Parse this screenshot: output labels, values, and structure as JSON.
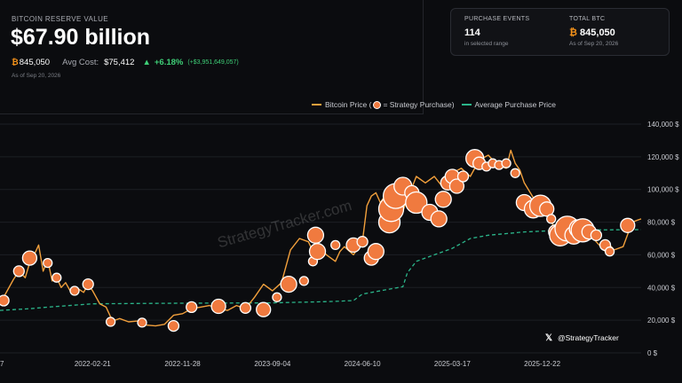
{
  "header": {
    "reserve_label": "BITCOIN RESERVE VALUE",
    "reserve_value": "$67.90 billion",
    "btc_symbol": "₿",
    "btc_amount": "845,050",
    "avg_cost_label": "Avg Cost:",
    "avg_cost_value": "$75,412",
    "change_arrow": "▲",
    "change_pct": "+6.18%",
    "change_abs": "(+$3,951,649,057)",
    "as_of": "As of Sep 20, 2026"
  },
  "summary_card": {
    "events_label": "PURCHASE EVENTS",
    "events_value": "114",
    "events_sub": "in selected range",
    "total_label": "TOTAL BTC",
    "total_symbol": "₿",
    "total_value": "845,050",
    "total_sub": "As of Sep 20, 2026"
  },
  "legend": {
    "price": "Bitcoin Price (",
    "purchase": "= Strategy Purchase)",
    "average": "Average Purchase Price"
  },
  "watermark": "StrategyTracker.com",
  "social": {
    "icon": "x-logo-icon",
    "handle": "@StrategyTracker"
  },
  "colors": {
    "price": "#f2a03c",
    "bubble": "#f07a3f",
    "average": "#2bb58a",
    "bitcoin": "#f7931a"
  },
  "chart_data": {
    "type": "line",
    "y_ticks": [
      "0 $",
      "20,000 $",
      "40,000 $",
      "60,000 $",
      "80,000 $",
      "100,000 $",
      "120,000 $",
      "140,000 $"
    ],
    "ylim": [
      0,
      140000
    ],
    "x_ticks": [
      "7",
      "2022-02-21",
      "2022-11-28",
      "2023-09-04",
      "2024-06-10",
      "2025-03-17",
      "2025-12-22"
    ],
    "x_tick_pos": [
      0,
      1,
      2,
      3,
      4,
      5,
      6
    ],
    "xlim": [
      -0.03,
      7.1
    ],
    "series": [
      {
        "name": "Bitcoin Price",
        "x": [
          -0.03,
          0.05,
          0.12,
          0.18,
          0.25,
          0.3,
          0.35,
          0.4,
          0.45,
          0.5,
          0.55,
          0.6,
          0.65,
          0.7,
          0.75,
          0.82,
          0.9,
          0.95,
          1.0,
          1.08,
          1.15,
          1.2,
          1.25,
          1.3,
          1.4,
          1.5,
          1.6,
          1.7,
          1.8,
          1.9,
          2.0,
          2.1,
          2.2,
          2.3,
          2.4,
          2.5,
          2.6,
          2.7,
          2.8,
          2.9,
          3.0,
          3.1,
          3.2,
          3.3,
          3.4,
          3.45,
          3.5,
          3.6,
          3.7,
          3.75,
          3.8,
          3.9,
          4.0,
          4.05,
          4.1,
          4.15,
          4.2,
          4.3,
          4.4,
          4.45,
          4.5,
          4.55,
          4.6,
          4.7,
          4.8,
          4.9,
          5.0,
          5.1,
          5.2,
          5.3,
          5.4,
          5.5,
          5.6,
          5.65,
          5.7,
          5.75,
          5.8,
          5.9,
          6.0,
          6.05,
          6.1,
          6.15,
          6.2,
          6.25,
          6.3,
          6.4,
          6.5,
          6.6,
          6.7,
          6.75,
          6.8,
          6.9,
          7.0,
          7.05,
          7.1
        ],
        "y": [
          30000,
          38000,
          45000,
          50000,
          46000,
          55000,
          60000,
          66000,
          50000,
          57000,
          44000,
          46000,
          40000,
          43000,
          38000,
          40000,
          37000,
          42000,
          38000,
          30000,
          28000,
          22000,
          20000,
          21000,
          19000,
          19500,
          17000,
          16500,
          17500,
          23000,
          24000,
          27000,
          28000,
          29000,
          27000,
          26000,
          29000,
          27000,
          34000,
          42000,
          38000,
          43000,
          63000,
          70000,
          68000,
          62000,
          66000,
          60000,
          56000,
          62000,
          65000,
          60000,
          68000,
          90000,
          96000,
          98000,
          92000,
          100000,
          96000,
          87000,
          94000,
          101000,
          108000,
          104000,
          108000,
          101000,
          110000,
          113000,
          108000,
          118000,
          121000,
          115000,
          113000,
          124000,
          116000,
          112000,
          104000,
          95000,
          90000,
          85000,
          80000,
          76000,
          71000,
          82000,
          69000,
          75000,
          77000,
          68000,
          62000,
          66000,
          63000,
          65000,
          80000,
          81000,
          82000
        ]
      },
      {
        "name": "Average Purchase Price",
        "x": [
          -0.03,
          0.3,
          0.5,
          1.0,
          1.5,
          2.0,
          2.5,
          3.0,
          3.3,
          3.5,
          3.7,
          3.9,
          4.0,
          4.2,
          4.3,
          4.4,
          4.45,
          4.5,
          4.6,
          4.8,
          5.0,
          5.2,
          5.4,
          5.6,
          5.8,
          6.0,
          6.2,
          6.5,
          6.8,
          7.1
        ],
        "y": [
          26000,
          27000,
          28000,
          30000,
          30200,
          30400,
          30500,
          30600,
          31000,
          31200,
          31500,
          32000,
          36000,
          38000,
          39000,
          40000,
          40500,
          49000,
          56000,
          60000,
          64000,
          70000,
          72000,
          73000,
          74000,
          74500,
          75000,
          75200,
          75300,
          75412
        ]
      }
    ],
    "purchases": [
      {
        "x": 0.01,
        "y": 32000,
        "r": 6
      },
      {
        "x": 0.18,
        "y": 50000,
        "r": 6
      },
      {
        "x": 0.3,
        "y": 58000,
        "r": 8
      },
      {
        "x": 0.5,
        "y": 55000,
        "r": 5
      },
      {
        "x": 0.6,
        "y": 46000,
        "r": 5
      },
      {
        "x": 0.8,
        "y": 38000,
        "r": 5
      },
      {
        "x": 0.95,
        "y": 42000,
        "r": 6
      },
      {
        "x": 1.2,
        "y": 19000,
        "r": 5
      },
      {
        "x": 1.55,
        "y": 18500,
        "r": 5
      },
      {
        "x": 1.9,
        "y": 16500,
        "r": 6
      },
      {
        "x": 2.1,
        "y": 28000,
        "r": 6
      },
      {
        "x": 2.4,
        "y": 28500,
        "r": 8
      },
      {
        "x": 2.7,
        "y": 27500,
        "r": 6
      },
      {
        "x": 2.9,
        "y": 26500,
        "r": 8
      },
      {
        "x": 3.05,
        "y": 34000,
        "r": 5
      },
      {
        "x": 3.18,
        "y": 42000,
        "r": 9
      },
      {
        "x": 3.35,
        "y": 44000,
        "r": 5
      },
      {
        "x": 3.45,
        "y": 56000,
        "r": 5
      },
      {
        "x": 3.5,
        "y": 62000,
        "r": 9
      },
      {
        "x": 3.48,
        "y": 72000,
        "r": 9
      },
      {
        "x": 3.7,
        "y": 66000,
        "r": 5
      },
      {
        "x": 3.9,
        "y": 66000,
        "r": 8
      },
      {
        "x": 4.0,
        "y": 68000,
        "r": 6
      },
      {
        "x": 4.1,
        "y": 58000,
        "r": 8
      },
      {
        "x": 4.15,
        "y": 62000,
        "r": 9
      },
      {
        "x": 4.3,
        "y": 80000,
        "r": 12
      },
      {
        "x": 4.32,
        "y": 88000,
        "r": 14
      },
      {
        "x": 4.37,
        "y": 96000,
        "r": 14
      },
      {
        "x": 4.45,
        "y": 102000,
        "r": 10
      },
      {
        "x": 4.55,
        "y": 98000,
        "r": 8
      },
      {
        "x": 4.6,
        "y": 92000,
        "r": 12
      },
      {
        "x": 4.75,
        "y": 86000,
        "r": 9
      },
      {
        "x": 4.85,
        "y": 82000,
        "r": 9
      },
      {
        "x": 4.9,
        "y": 94000,
        "r": 9
      },
      {
        "x": 4.95,
        "y": 104000,
        "r": 8
      },
      {
        "x": 5.0,
        "y": 108000,
        "r": 8
      },
      {
        "x": 5.05,
        "y": 102000,
        "r": 8
      },
      {
        "x": 5.12,
        "y": 108000,
        "r": 6
      },
      {
        "x": 5.25,
        "y": 119000,
        "r": 10
      },
      {
        "x": 5.3,
        "y": 116000,
        "r": 7
      },
      {
        "x": 5.38,
        "y": 114000,
        "r": 5
      },
      {
        "x": 5.45,
        "y": 116000,
        "r": 5
      },
      {
        "x": 5.52,
        "y": 115000,
        "r": 5
      },
      {
        "x": 5.6,
        "y": 116000,
        "r": 5
      },
      {
        "x": 5.7,
        "y": 110000,
        "r": 5
      },
      {
        "x": 5.8,
        "y": 92000,
        "r": 9
      },
      {
        "x": 5.9,
        "y": 88000,
        "r": 10
      },
      {
        "x": 5.98,
        "y": 90000,
        "r": 12
      },
      {
        "x": 6.05,
        "y": 88000,
        "r": 8
      },
      {
        "x": 6.1,
        "y": 82000,
        "r": 5
      },
      {
        "x": 6.15,
        "y": 74000,
        "r": 8
      },
      {
        "x": 6.2,
        "y": 72000,
        "r": 12
      },
      {
        "x": 6.28,
        "y": 76000,
        "r": 14
      },
      {
        "x": 6.35,
        "y": 72000,
        "r": 10
      },
      {
        "x": 6.4,
        "y": 76000,
        "r": 10
      },
      {
        "x": 6.45,
        "y": 75000,
        "r": 13
      },
      {
        "x": 6.52,
        "y": 74000,
        "r": 8
      },
      {
        "x": 6.6,
        "y": 72000,
        "r": 6
      },
      {
        "x": 6.7,
        "y": 66000,
        "r": 6
      },
      {
        "x": 6.75,
        "y": 62000,
        "r": 5
      },
      {
        "x": 6.95,
        "y": 78000,
        "r": 8
      }
    ]
  }
}
